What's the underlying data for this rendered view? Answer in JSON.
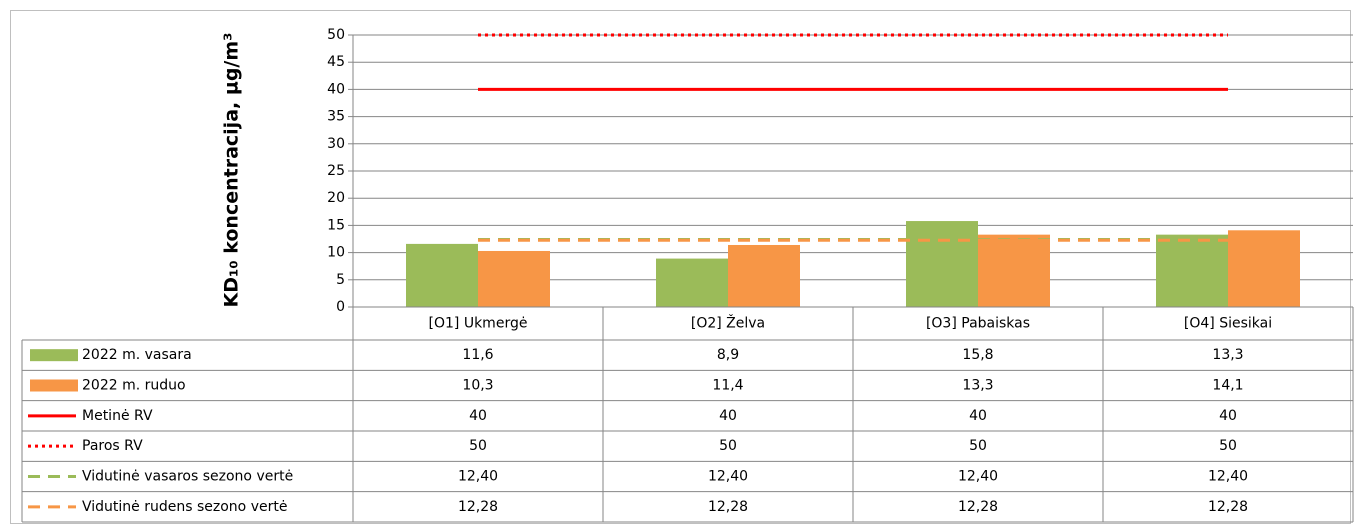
{
  "chart_data": {
    "type": "bar",
    "y_label": "KD₁₀  koncentracija, µg/m³",
    "categories": [
      "[O1] Ukmergė",
      "[O2] Želva",
      "[O3] Pabaiskas",
      "[O4] Siesikai"
    ],
    "ylim": [
      0,
      50
    ],
    "yticks": [
      0,
      5,
      10,
      15,
      20,
      25,
      30,
      35,
      40,
      45,
      50
    ],
    "grid": true,
    "series": [
      {
        "name": "2022 m. vasara",
        "color": "#9bbb59",
        "style": "bar",
        "values": [
          11.6,
          8.9,
          15.8,
          13.3
        ],
        "value_labels": [
          "11,6",
          "8,9",
          "15,8",
          "13,3"
        ]
      },
      {
        "name": "2022 m. ruduo",
        "color": "#f79646",
        "style": "bar",
        "values": [
          10.3,
          11.4,
          13.3,
          14.1
        ],
        "value_labels": [
          "10,3",
          "11,4",
          "13,3",
          "14,1"
        ]
      },
      {
        "name": "Metinė RV",
        "color": "#ff0000",
        "style": "solid",
        "values": [
          40,
          40,
          40,
          40
        ]
      },
      {
        "name": "Paros RV",
        "color": "#ff0000",
        "style": "dotted",
        "values": [
          50,
          50,
          50,
          50
        ]
      },
      {
        "name": "Vidutinė vasaros sezono vertė",
        "color": "#9bbb59",
        "style": "dashed",
        "values": [
          12.4,
          12.4,
          12.4,
          12.4
        ],
        "value_labels": [
          "12,40",
          "12,40",
          "12,40",
          "12,40"
        ]
      },
      {
        "name": "Vidutinė rudens sezono vertė",
        "color": "#f79646",
        "style": "dashed",
        "values": [
          12.28,
          12.28,
          12.28,
          12.28
        ],
        "value_labels": [
          "12,28",
          "12,28",
          "12,28",
          "12,28"
        ]
      }
    ]
  }
}
